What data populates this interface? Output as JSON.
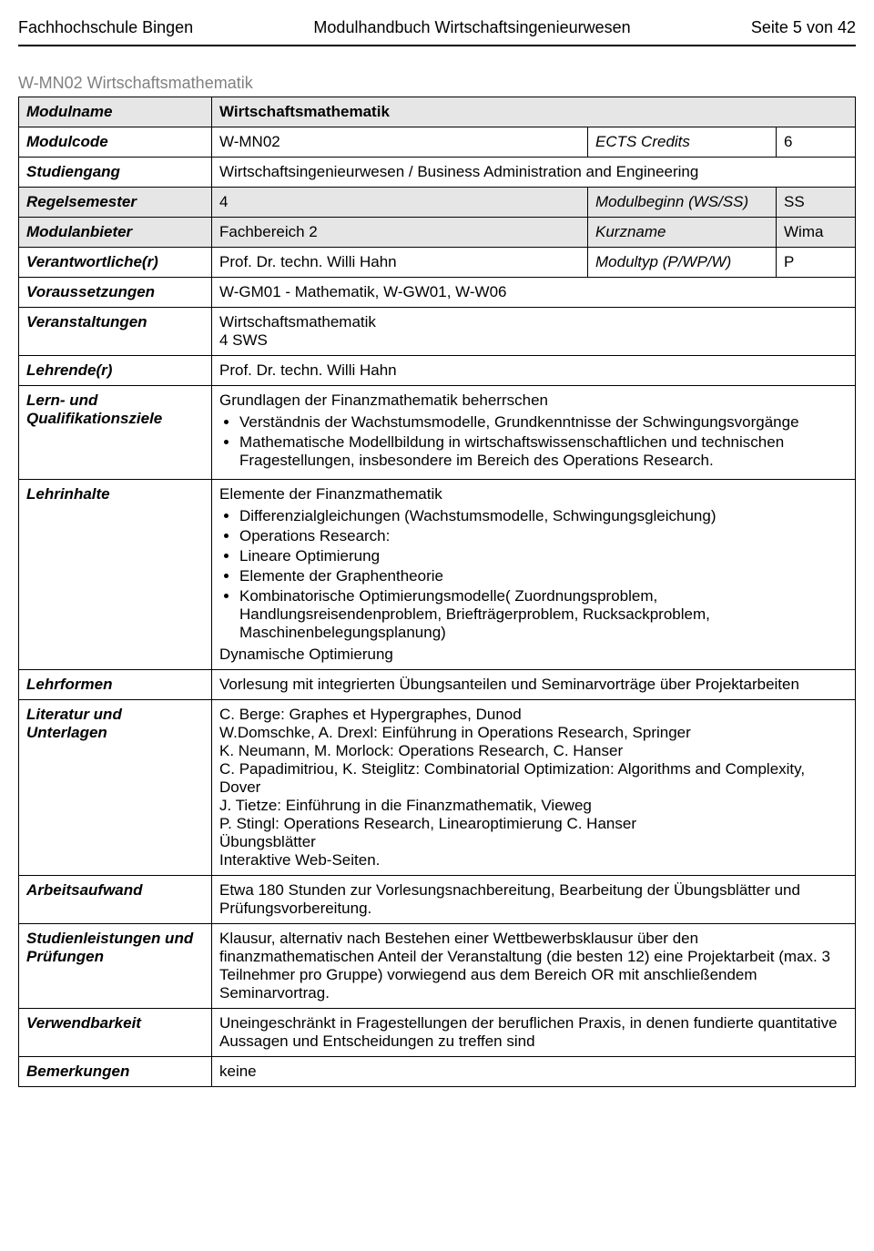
{
  "header": {
    "left": "Fachhochschule Bingen",
    "center": "Modulhandbuch Wirtschaftsingenieurwesen",
    "right": "Seite 5 von 42"
  },
  "module_code_title": "W-MN02 Wirtschaftsmathematik",
  "rows": {
    "modulname": {
      "label": "Modulname",
      "value": "Wirtschaftsmathematik"
    },
    "modulcode": {
      "label": "Modulcode",
      "value": "W-MN02",
      "ects_label": "ECTS Credits",
      "ects_value": "6"
    },
    "studiengang": {
      "label": "Studiengang",
      "value": "Wirtschaftsingenieurwesen / Business Administration and Engineering"
    },
    "regelsemester": {
      "label": "Regelsemester",
      "value": "4",
      "beginn_label": "Modulbeginn (WS/SS)",
      "beginn_value": "SS"
    },
    "modulanbieter": {
      "label": "Modulanbieter",
      "value": "Fachbereich 2",
      "kurz_label": "Kurzname",
      "kurz_value": "Wima"
    },
    "verantwortliche": {
      "label": "Verantwortliche(r)",
      "value": "Prof. Dr. techn. Willi Hahn",
      "typ_label": "Modultyp (P/WP/W)",
      "typ_value": "P"
    },
    "voraussetzungen": {
      "label": "Voraussetzungen",
      "value": "W-GM01 - Mathematik, W-GW01, W-W06"
    },
    "veranstaltungen": {
      "label": "Veranstaltungen",
      "value": "Wirtschaftsmathematik\n4 SWS"
    },
    "lehrende": {
      "label": "Lehrende(r)",
      "value": "Prof. Dr. techn. Willi Hahn"
    },
    "lernziele": {
      "label": "Lern- und Qualifikationsziele",
      "pre": "Grundlagen der Finanzmathematik beherrschen",
      "items": [
        "Verständnis der Wachstumsmodelle, Grundkenntnisse der Schwingungsvorgänge",
        "Mathematische Modellbildung in wirtschaftswissenschaftlichen und technischen Fragestellungen, insbesondere im Bereich des Operations Research."
      ]
    },
    "lehrinhalte": {
      "label": "Lehrinhalte",
      "pre": "Elemente der Finanzmathematik",
      "items": [
        "Differenzialgleichungen (Wachstumsmodelle, Schwingungsgleichung)",
        "Operations Research:",
        "Lineare Optimierung",
        "Elemente der Graphentheorie",
        "Kombinatorische Optimierungsmodelle( Zuordnungsproblem, Handlungsreisendenproblem, Briefträgerproblem, Rucksackproblem, Maschinenbelegungsplanung)"
      ],
      "post": "Dynamische Optimierung"
    },
    "lehrformen": {
      "label": "Lehrformen",
      "value": "Vorlesung mit integrierten Übungsanteilen und Seminarvorträge über Projektarbeiten"
    },
    "literatur": {
      "label": "Literatur und Unterlagen",
      "lines": [
        "C. Berge: Graphes et Hypergraphes, Dunod",
        "W.Domschke, A. Drexl: Einführung in Operations Research, Springer",
        "K. Neumann, M. Morlock: Operations Research, C. Hanser",
        "C. Papadimitriou, K. Steiglitz: Combinatorial Optimization: Algorithms and Complexity, Dover",
        "J. Tietze: Einführung in die Finanzmathematik, Vieweg",
        "P. Stingl: Operations Research, Linearoptimierung C. Hanser",
        "Übungsblätter",
        "Interaktive Web-Seiten."
      ]
    },
    "arbeitsaufwand": {
      "label": "Arbeitsaufwand",
      "value": "Etwa 180 Stunden zur Vorlesungsnachbereitung, Bearbeitung der Übungsblätter und Prüfungsvorbereitung."
    },
    "studienleistungen": {
      "label": "Studienleistungen und Prüfungen",
      "value": "Klausur, alternativ nach Bestehen einer Wettbewerbsklausur über den finanzmathematischen Anteil der Veranstaltung (die besten 12) eine Projektarbeit (max. 3 Teilnehmer pro Gruppe) vorwiegend aus dem Bereich OR mit anschließendem  Seminarvortrag."
    },
    "verwendbarkeit": {
      "label": "Verwendbarkeit",
      "value": "Uneingeschränkt in Fragestellungen der beruflichen Praxis, in denen fundierte quantitative Aussagen und Entscheidungen zu treffen sind"
    },
    "bemerkungen": {
      "label": "Bemerkungen",
      "value": "keine"
    }
  }
}
